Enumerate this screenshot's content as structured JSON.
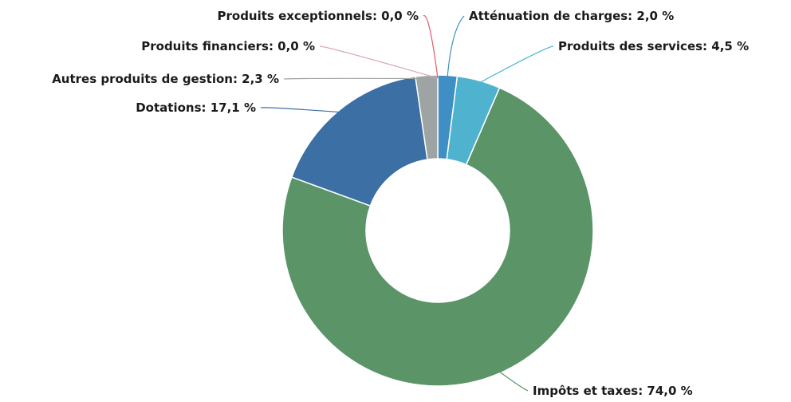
{
  "chart_data": {
    "type": "pie",
    "donut": true,
    "title": "",
    "unit": "%",
    "slices": [
      {
        "name": "Atténuation de charges",
        "value": 2.0,
        "label": "Atténuation de charges: 2,0 %",
        "color": "#3e8fc4"
      },
      {
        "name": "Produits des services",
        "value": 4.5,
        "label": "Produits des services: 4,5 %",
        "color": "#4fb3cf"
      },
      {
        "name": "Impôts et taxes",
        "value": 74.0,
        "label": "Impôts et taxes: 74,0 %",
        "color": "#5a9467"
      },
      {
        "name": "Dotations",
        "value": 17.1,
        "label": "Dotations: 17,1 %",
        "color": "#3c6fa4"
      },
      {
        "name": "Autres produits de gestion",
        "value": 2.3,
        "label": "Autres produits de gestion: 2,3 %",
        "color": "#9ea3a3"
      },
      {
        "name": "Produits financiers",
        "value": 0.0,
        "label": "Produits financiers: 0,0 %",
        "color": "#d9a7c0"
      },
      {
        "name": "Produits exceptionnels",
        "value": 0.0,
        "label": "Produits exceptionnels: 0,0 %",
        "color": "#e05a6a"
      }
    ]
  }
}
